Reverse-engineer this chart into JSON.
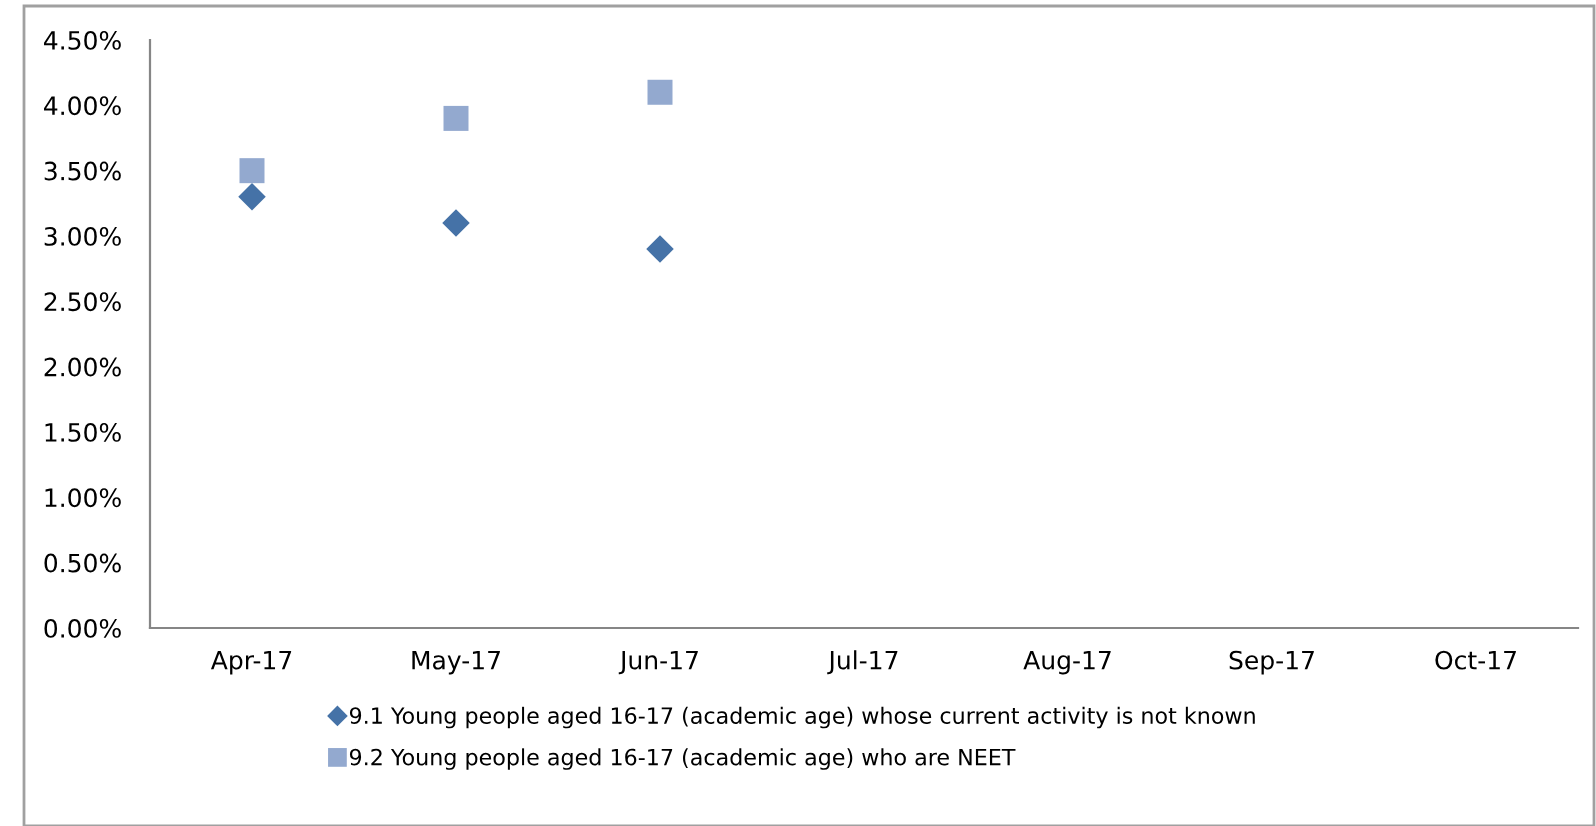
{
  "chart_data": {
    "type": "scatter",
    "categories": [
      "Apr-17",
      "May-17",
      "Jun-17",
      "Jul-17",
      "Aug-17",
      "Sep-17",
      "Oct-17"
    ],
    "series": [
      {
        "name": "9.1 Young people aged 16-17 (academic age) whose current activity is not known",
        "color": "#4572a7",
        "marker": "diamond",
        "values": [
          3.3,
          3.1,
          2.9,
          null,
          null,
          null,
          null
        ]
      },
      {
        "name": "9.2 Young people aged 16-17 (academic age) who are NEET",
        "color": "#93a9cf",
        "marker": "square",
        "values": [
          3.5,
          3.9,
          4.1,
          null,
          null,
          null,
          null
        ]
      }
    ],
    "ylim": [
      0,
      4.5
    ],
    "yticks": [
      {
        "value": 0,
        "label": "0.00%"
      },
      {
        "value": 0.5,
        "label": "0.50%"
      },
      {
        "value": 1,
        "label": "1.00%"
      },
      {
        "value": 1.5,
        "label": "1.50%"
      },
      {
        "value": 2,
        "label": "2.00%"
      },
      {
        "value": 2.5,
        "label": "2.50%"
      },
      {
        "value": 3,
        "label": "3.00%"
      },
      {
        "value": 3.5,
        "label": "3.50%"
      },
      {
        "value": 4,
        "label": "4.00%"
      },
      {
        "value": 4.5,
        "label": "4.50%"
      }
    ],
    "grid": false,
    "legend": "bottom"
  }
}
